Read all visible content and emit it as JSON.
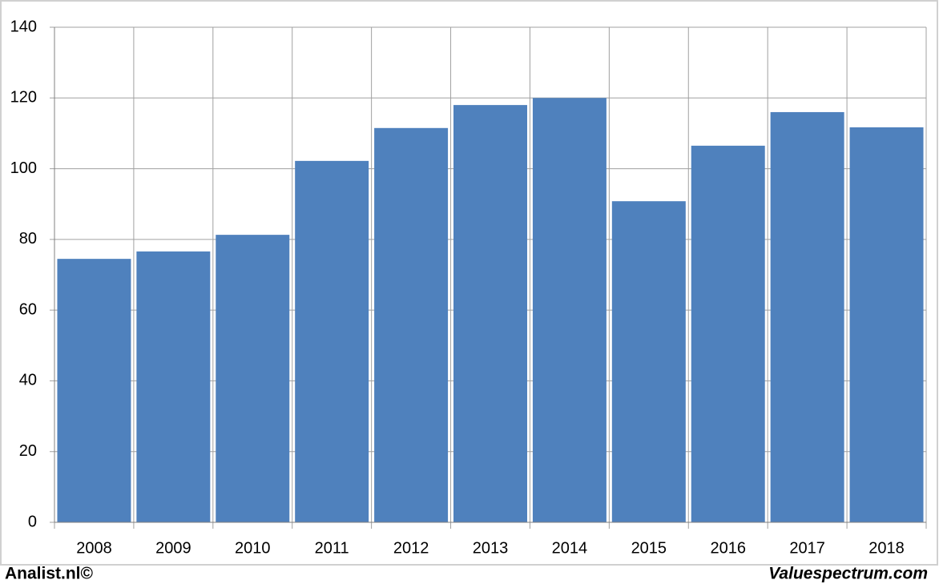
{
  "chart_data": {
    "type": "bar",
    "categories": [
      "2008",
      "2009",
      "2010",
      "2011",
      "2012",
      "2013",
      "2014",
      "2015",
      "2016",
      "2017",
      "2018"
    ],
    "values": [
      74.5,
      76.6,
      81.3,
      102.2,
      111.5,
      118,
      120,
      90.8,
      106.5,
      116,
      111.7
    ],
    "color": "#4f81bd",
    "ylim": [
      0,
      140
    ],
    "yticks": [
      0,
      20,
      40,
      60,
      80,
      100,
      120,
      140
    ],
    "grid": true,
    "footer_left": "Analist.nl©",
    "footer_right": "Valuespectrum.com"
  }
}
